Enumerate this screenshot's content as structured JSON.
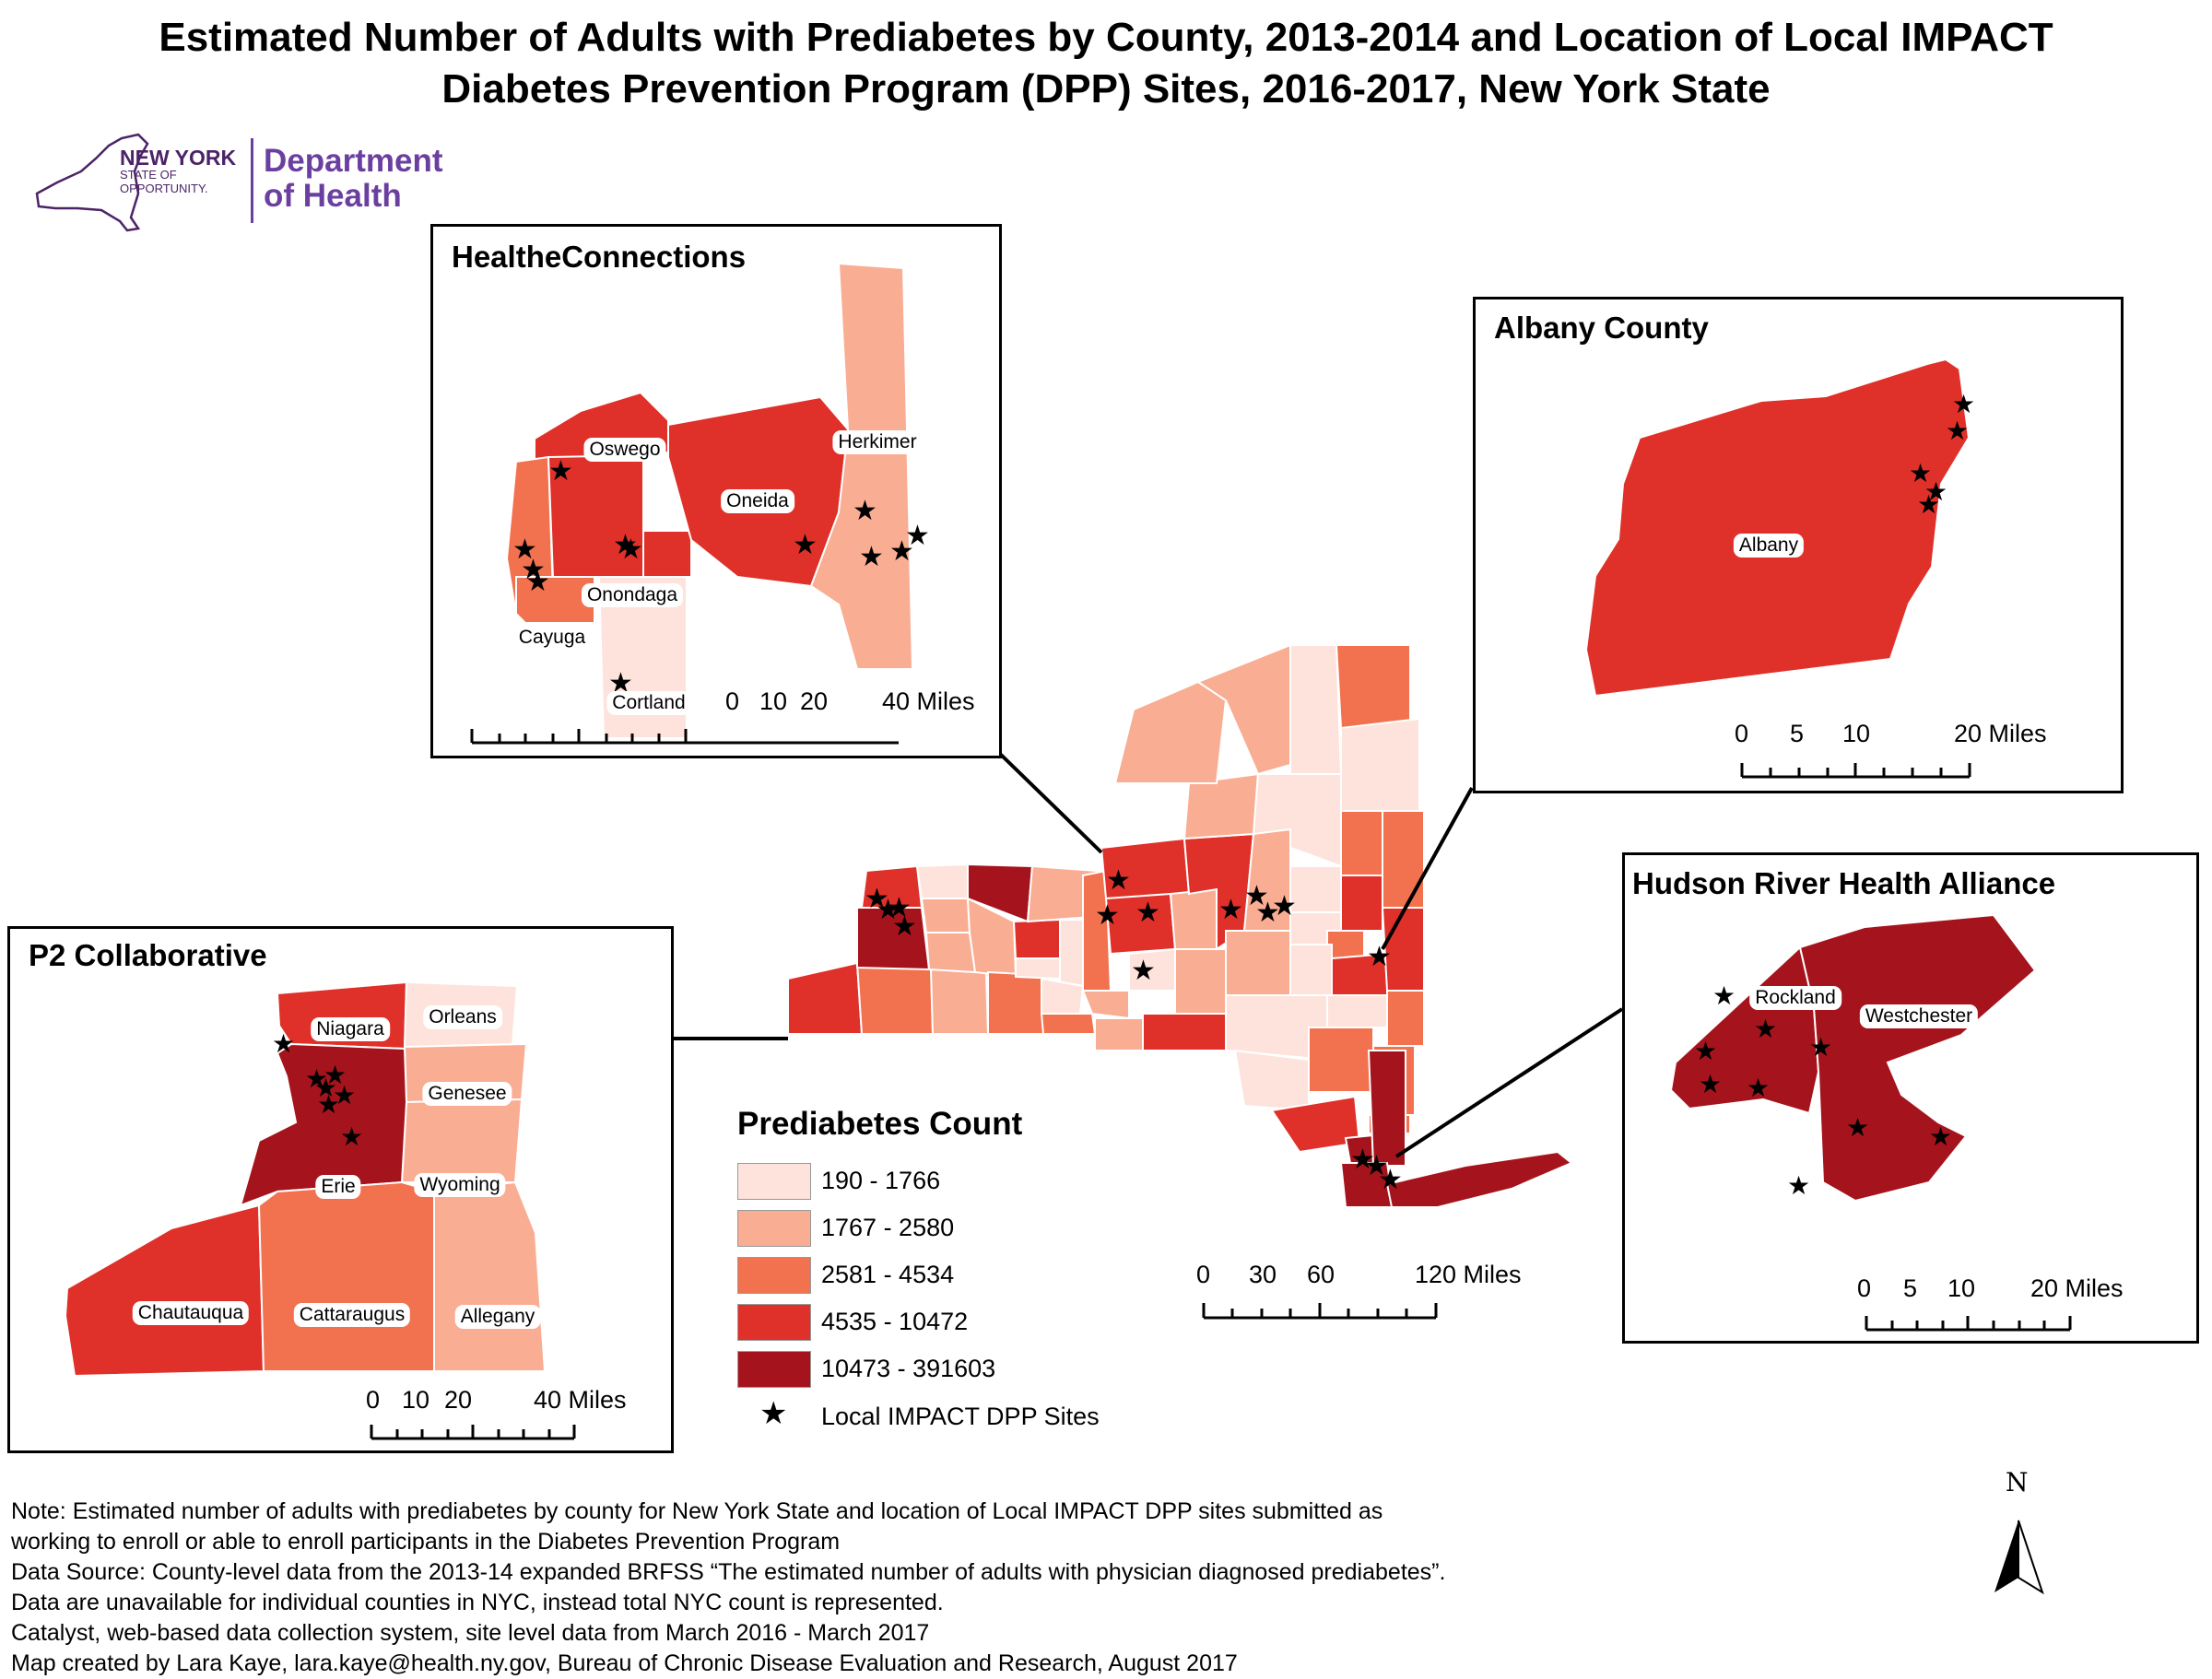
{
  "title": {
    "line1": "Estimated Number of Adults with Prediabetes by County, 2013-2014 and Location of Local IMPACT",
    "line2": "Diabetes Prevention Program (DPP) Sites, 2016-2017, New York State"
  },
  "logo": {
    "state_name": "NEW YORK",
    "state_sub1": "STATE OF",
    "state_sub2": "OPPORTUNITY.",
    "dept_line1": "Department",
    "dept_line2": "of Health"
  },
  "colors": {
    "class1": "#fde3db",
    "class2": "#f9ad93",
    "class3": "#f2714f",
    "class4": "#df3029",
    "class5": "#a5141c",
    "boundary": "#ffffff",
    "logo_purple": "#6b3fa0"
  },
  "legend": {
    "title": "Prediabetes Count",
    "classes": [
      {
        "label": "190 - 1766",
        "color": "#fde3db"
      },
      {
        "label": "1767 - 2580",
        "color": "#f9ad93"
      },
      {
        "label": "2581 - 4534",
        "color": "#f2714f"
      },
      {
        "label": "4535 - 10472",
        "color": "#df3029"
      },
      {
        "label": "10473 - 391603",
        "color": "#a5141c"
      }
    ],
    "sites_label": "Local IMPACT DPP Sites"
  },
  "insets": {
    "healthe": {
      "title": "HealtheConnections",
      "counties": {
        "oswego": "Oswego",
        "oneida": "Oneida",
        "herkimer": "Herkimer",
        "onondaga": "Onondaga",
        "cayuga": "Cayuga",
        "cortland": "Cortland"
      },
      "scale": {
        "t0": "0",
        "t1": "10",
        "t2": "20",
        "t3": "40 Miles"
      }
    },
    "albany": {
      "title": "Albany County",
      "counties": {
        "albany": "Albany"
      },
      "scale": {
        "t0": "0",
        "t1": "5",
        "t2": "10",
        "t3": "20 Miles"
      }
    },
    "hudson": {
      "title": "Hudson River Health Alliance",
      "counties": {
        "rockland": "Rockland",
        "westchester": "Westchester"
      },
      "scale": {
        "t0": "0",
        "t1": "5",
        "t2": "10",
        "t3": "20 Miles"
      }
    },
    "p2": {
      "title": "P2 Collaborative",
      "counties": {
        "niagara": "Niagara",
        "orleans": "Orleans",
        "genesee": "Genesee",
        "wyoming": "Wyoming",
        "erie": "Erie",
        "chautauqua": "Chautauqua",
        "cattaraugus": "Cattaraugus",
        "allegany": "Allegany"
      },
      "scale": {
        "t0": "0",
        "t1": "10",
        "t2": "20",
        "t3": "40 Miles"
      }
    }
  },
  "main_scale": {
    "t0": "0",
    "t1": "30",
    "t2": "60",
    "t3": "120 Miles"
  },
  "north_arrow": {
    "label": "N"
  },
  "notes": [
    "Note: Estimated number of adults with prediabetes by county for New York State and location of Local IMPACT DPP sites submitted as",
    "working to enroll or able to enroll participants in the Diabetes Prevention Program",
    "Data Source: County-level data from the 2013-14 expanded BRFSS “The estimated number of adults with physician diagnosed prediabetes”.",
    "Data are unavailable for individual counties in NYC, instead total NYC count is represented.",
    "Catalyst, web-based data collection system, site level data from March 2016 - March 2017",
    "Map created by Lara Kaye, lara.kaye@health.ny.gov, Bureau of Chronic Disease Evaluation and Research, August 2017"
  ]
}
